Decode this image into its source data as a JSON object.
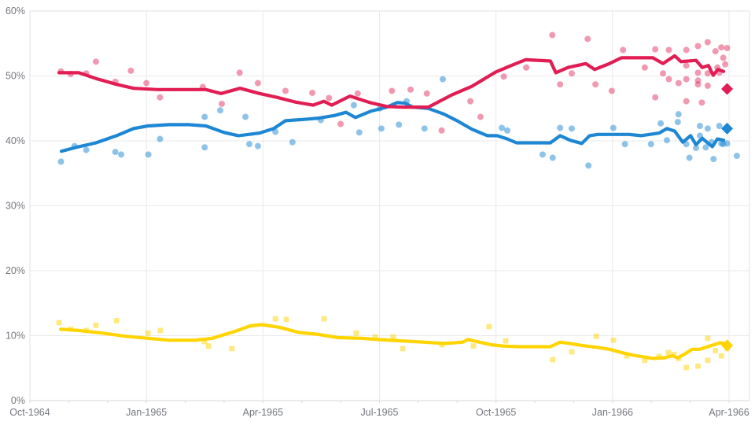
{
  "chart_data": {
    "type": "scatter",
    "title": "",
    "xlabel": "",
    "ylabel": "",
    "grid": true,
    "legend": "none",
    "x_axis": {
      "unit": "months-since-Oct-1964",
      "range": [
        0,
        18.55
      ],
      "ticks": [
        {
          "label": "Oct-1964",
          "month": 0
        },
        {
          "label": "Jan-1965",
          "month": 3
        },
        {
          "label": "Apr-1965",
          "month": 6
        },
        {
          "label": "Jul-1965",
          "month": 9
        },
        {
          "label": "Oct-1965",
          "month": 12
        },
        {
          "label": "Jan-1966",
          "month": 15
        },
        {
          "label": "Apr-1966",
          "month": 18
        }
      ]
    },
    "y_axis": {
      "range": [
        0,
        60
      ],
      "ticks": [
        {
          "label": "0%",
          "value": 0
        },
        {
          "label": "10%",
          "value": 10
        },
        {
          "label": "20%",
          "value": 20
        },
        {
          "label": "30%",
          "value": 30
        },
        {
          "label": "40%",
          "value": 40
        },
        {
          "label": "50%",
          "value": 50
        },
        {
          "label": "60%",
          "value": 60
        }
      ]
    },
    "series": [
      {
        "name": "yellow-series",
        "color": "#ffd400",
        "scatter_opacity": 0.5,
        "marker": "square",
        "scatter": [
          [
            0.75,
            12.0
          ],
          [
            1.05,
            11.0
          ],
          [
            1.45,
            10.8
          ],
          [
            1.7,
            11.6
          ],
          [
            2.23,
            12.3
          ],
          [
            3.04,
            10.4
          ],
          [
            3.36,
            10.8
          ],
          [
            4.49,
            9.1
          ],
          [
            4.6,
            8.4
          ],
          [
            5.2,
            8.0
          ],
          [
            6.32,
            12.6
          ],
          [
            6.6,
            12.5
          ],
          [
            7.57,
            12.6
          ],
          [
            8.4,
            10.4
          ],
          [
            8.89,
            9.8
          ],
          [
            9.35,
            9.8
          ],
          [
            9.6,
            8.0
          ],
          [
            10.61,
            8.6
          ],
          [
            11.42,
            8.4
          ],
          [
            11.82,
            11.4
          ],
          [
            12.25,
            9.2
          ],
          [
            13.46,
            6.3
          ],
          [
            13.95,
            7.5
          ],
          [
            14.58,
            9.9
          ],
          [
            15.02,
            9.3
          ],
          [
            15.37,
            6.9
          ],
          [
            15.83,
            6.2
          ],
          [
            16.2,
            6.8
          ],
          [
            16.44,
            7.4
          ],
          [
            16.58,
            7.1
          ],
          [
            16.7,
            6.5
          ],
          [
            16.9,
            5.1
          ],
          [
            17.2,
            5.3
          ],
          [
            17.45,
            9.6
          ],
          [
            17.45,
            6.2
          ],
          [
            17.65,
            7.7
          ],
          [
            17.8,
            6.9
          ],
          [
            17.95,
            8.0
          ]
        ],
        "trend": [
          [
            0.79,
            11.0
          ],
          [
            1.26,
            10.8
          ],
          [
            1.86,
            10.4
          ],
          [
            2.47,
            9.9
          ],
          [
            3.04,
            9.6
          ],
          [
            3.58,
            9.3
          ],
          [
            4.25,
            9.3
          ],
          [
            4.7,
            9.6
          ],
          [
            5.3,
            10.7
          ],
          [
            5.67,
            11.5
          ],
          [
            5.97,
            11.7
          ],
          [
            6.42,
            11.3
          ],
          [
            6.92,
            10.5
          ],
          [
            7.43,
            10.2
          ],
          [
            7.94,
            9.7
          ],
          [
            8.54,
            9.6
          ],
          [
            8.95,
            9.4
          ],
          [
            9.56,
            9.2
          ],
          [
            10.16,
            9.0
          ],
          [
            10.67,
            8.8
          ],
          [
            11.14,
            9.0
          ],
          [
            11.28,
            9.4
          ],
          [
            11.58,
            9.0
          ],
          [
            11.88,
            8.6
          ],
          [
            12.19,
            8.4
          ],
          [
            12.59,
            8.3
          ],
          [
            13.4,
            8.3
          ],
          [
            13.65,
            9.0
          ],
          [
            13.91,
            8.8
          ],
          [
            14.21,
            8.5
          ],
          [
            14.62,
            8.2
          ],
          [
            14.92,
            7.9
          ],
          [
            15.23,
            7.4
          ],
          [
            15.53,
            7.0
          ],
          [
            15.73,
            6.8
          ],
          [
            16.04,
            6.5
          ],
          [
            16.34,
            6.6
          ],
          [
            16.54,
            6.9
          ],
          [
            16.68,
            6.6
          ],
          [
            16.84,
            7.1
          ],
          [
            17.05,
            7.9
          ],
          [
            17.25,
            7.9
          ],
          [
            17.45,
            8.3
          ],
          [
            17.61,
            8.6
          ],
          [
            17.76,
            8.9
          ],
          [
            17.86,
            8.8
          ]
        ],
        "final_marker": {
          "shape": "diamond",
          "month": 17.95,
          "value": 8.5
        }
      },
      {
        "name": "blue-series",
        "color": "#1d87d4",
        "scatter_opacity": 0.5,
        "marker": "circle",
        "scatter": [
          [
            0.8,
            36.8
          ],
          [
            1.15,
            39.2
          ],
          [
            1.45,
            38.6
          ],
          [
            2.2,
            38.3
          ],
          [
            2.35,
            37.9
          ],
          [
            3.05,
            37.9
          ],
          [
            3.35,
            40.3
          ],
          [
            4.5,
            43.7
          ],
          [
            4.5,
            39.0
          ],
          [
            4.9,
            44.7
          ],
          [
            5.55,
            43.7
          ],
          [
            5.65,
            39.5
          ],
          [
            5.87,
            39.2
          ],
          [
            6.32,
            41.4
          ],
          [
            6.76,
            39.8
          ],
          [
            7.49,
            43.2
          ],
          [
            8.34,
            45.5
          ],
          [
            8.48,
            41.3
          ],
          [
            9.01,
            45.0
          ],
          [
            9.05,
            41.9
          ],
          [
            9.5,
            42.5
          ],
          [
            9.7,
            46.1
          ],
          [
            10.16,
            41.9
          ],
          [
            10.63,
            49.5
          ],
          [
            12.15,
            42.0
          ],
          [
            12.29,
            41.6
          ],
          [
            13.2,
            37.9
          ],
          [
            13.46,
            37.4
          ],
          [
            13.65,
            42.0
          ],
          [
            13.95,
            41.9
          ],
          [
            14.38,
            36.2
          ],
          [
            15.02,
            42.0
          ],
          [
            15.32,
            39.5
          ],
          [
            15.99,
            39.5
          ],
          [
            16.24,
            42.7
          ],
          [
            16.4,
            40.1
          ],
          [
            16.68,
            42.9
          ],
          [
            16.7,
            44.1
          ],
          [
            16.9,
            39.5
          ],
          [
            16.98,
            37.4
          ],
          [
            17.15,
            38.9
          ],
          [
            17.25,
            42.3
          ],
          [
            17.25,
            40.8
          ],
          [
            17.4,
            39.0
          ],
          [
            17.45,
            41.9
          ],
          [
            17.55,
            39.8
          ],
          [
            17.6,
            37.2
          ],
          [
            17.75,
            42.3
          ],
          [
            17.8,
            39.6
          ],
          [
            17.85,
            39.5
          ],
          [
            17.95,
            39.6
          ],
          [
            18.2,
            37.7
          ]
        ],
        "trend": [
          [
            0.81,
            38.4
          ],
          [
            1.26,
            39.1
          ],
          [
            1.7,
            39.7
          ],
          [
            2.23,
            40.8
          ],
          [
            2.67,
            41.9
          ],
          [
            3.04,
            42.3
          ],
          [
            3.58,
            42.5
          ],
          [
            4.09,
            42.5
          ],
          [
            4.53,
            42.3
          ],
          [
            5.0,
            41.3
          ],
          [
            5.37,
            40.8
          ],
          [
            5.91,
            41.2
          ],
          [
            6.28,
            41.9
          ],
          [
            6.58,
            43.1
          ],
          [
            7.03,
            43.3
          ],
          [
            7.43,
            43.5
          ],
          [
            7.84,
            43.9
          ],
          [
            8.14,
            44.4
          ],
          [
            8.38,
            43.6
          ],
          [
            8.79,
            44.6
          ],
          [
            9.19,
            45.2
          ],
          [
            9.46,
            45.9
          ],
          [
            9.66,
            45.8
          ],
          [
            9.86,
            45.2
          ],
          [
            10.26,
            45.0
          ],
          [
            10.67,
            44.1
          ],
          [
            11.03,
            43.0
          ],
          [
            11.38,
            41.8
          ],
          [
            11.78,
            40.8
          ],
          [
            12.03,
            40.8
          ],
          [
            12.29,
            40.3
          ],
          [
            12.53,
            39.7
          ],
          [
            13.4,
            39.7
          ],
          [
            13.65,
            40.8
          ],
          [
            13.91,
            40.1
          ],
          [
            14.21,
            39.6
          ],
          [
            14.41,
            40.8
          ],
          [
            14.62,
            41.0
          ],
          [
            15.43,
            41.0
          ],
          [
            15.73,
            40.8
          ],
          [
            16.2,
            41.2
          ],
          [
            16.4,
            41.9
          ],
          [
            16.6,
            41.5
          ],
          [
            16.81,
            39.8
          ],
          [
            17.01,
            40.8
          ],
          [
            17.15,
            39.4
          ],
          [
            17.31,
            40.4
          ],
          [
            17.45,
            39.7
          ],
          [
            17.57,
            39.1
          ],
          [
            17.7,
            40.3
          ],
          [
            17.86,
            40.1
          ]
        ],
        "final_marker": {
          "shape": "diamond",
          "month": 17.95,
          "value": 41.9
        }
      },
      {
        "name": "red-series",
        "color": "#e11d53",
        "scatter_opacity": 0.45,
        "marker": "circle",
        "scatter": [
          [
            0.8,
            50.7
          ],
          [
            1.05,
            50.3
          ],
          [
            1.45,
            50.4
          ],
          [
            1.7,
            52.2
          ],
          [
            2.2,
            49.1
          ],
          [
            2.6,
            50.8
          ],
          [
            3.0,
            48.9
          ],
          [
            3.35,
            46.7
          ],
          [
            4.45,
            48.3
          ],
          [
            4.94,
            45.7
          ],
          [
            5.4,
            50.5
          ],
          [
            5.87,
            48.9
          ],
          [
            6.58,
            47.7
          ],
          [
            7.27,
            47.4
          ],
          [
            7.7,
            46.6
          ],
          [
            8.0,
            42.6
          ],
          [
            8.44,
            47.3
          ],
          [
            9.32,
            47.7
          ],
          [
            9.8,
            47.9
          ],
          [
            10.22,
            47.3
          ],
          [
            10.6,
            41.6
          ],
          [
            11.34,
            46.1
          ],
          [
            11.6,
            43.7
          ],
          [
            12.2,
            49.9
          ],
          [
            12.78,
            51.3
          ],
          [
            13.45,
            56.3
          ],
          [
            13.65,
            48.7
          ],
          [
            13.95,
            50.4
          ],
          [
            14.36,
            55.7
          ],
          [
            14.56,
            48.7
          ],
          [
            14.98,
            47.7
          ],
          [
            15.27,
            54.0
          ],
          [
            15.83,
            51.3
          ],
          [
            16.1,
            54.1
          ],
          [
            16.1,
            46.7
          ],
          [
            16.3,
            50.4
          ],
          [
            16.45,
            54.0
          ],
          [
            16.45,
            49.5
          ],
          [
            16.7,
            48.9
          ],
          [
            16.9,
            54.0
          ],
          [
            16.9,
            51.6
          ],
          [
            16.9,
            49.5
          ],
          [
            16.9,
            46.1
          ],
          [
            17.2,
            54.6
          ],
          [
            17.2,
            50.5
          ],
          [
            17.2,
            49.3
          ],
          [
            17.2,
            48.7
          ],
          [
            17.3,
            45.9
          ],
          [
            17.45,
            55.2
          ],
          [
            17.45,
            50.4
          ],
          [
            17.45,
            48.5
          ],
          [
            17.65,
            53.8
          ],
          [
            17.7,
            51.3
          ],
          [
            17.75,
            50.5
          ],
          [
            17.8,
            54.4
          ],
          [
            17.85,
            52.8
          ],
          [
            17.9,
            51.8
          ],
          [
            17.95,
            54.3
          ]
        ],
        "trend": [
          [
            0.75,
            50.5
          ],
          [
            1.26,
            50.5
          ],
          [
            1.7,
            49.6
          ],
          [
            2.23,
            48.7
          ],
          [
            2.67,
            48.1
          ],
          [
            3.28,
            47.9
          ],
          [
            4.53,
            47.9
          ],
          [
            4.92,
            47.3
          ],
          [
            5.41,
            48.1
          ],
          [
            5.91,
            47.3
          ],
          [
            6.36,
            46.7
          ],
          [
            6.82,
            46.0
          ],
          [
            7.29,
            45.5
          ],
          [
            7.57,
            46.1
          ],
          [
            7.77,
            45.5
          ],
          [
            8.24,
            46.9
          ],
          [
            8.75,
            45.9
          ],
          [
            9.19,
            45.3
          ],
          [
            9.6,
            45.2
          ],
          [
            10.26,
            45.2
          ],
          [
            10.87,
            47.1
          ],
          [
            11.38,
            48.4
          ],
          [
            11.99,
            50.6
          ],
          [
            12.39,
            51.6
          ],
          [
            12.76,
            52.5
          ],
          [
            13.4,
            52.3
          ],
          [
            13.54,
            50.5
          ],
          [
            13.85,
            51.3
          ],
          [
            14.31,
            51.9
          ],
          [
            14.54,
            51.0
          ],
          [
            14.92,
            51.9
          ],
          [
            15.23,
            52.8
          ],
          [
            16.04,
            52.8
          ],
          [
            16.3,
            51.9
          ],
          [
            16.6,
            53.1
          ],
          [
            16.76,
            52.2
          ],
          [
            17.15,
            52.4
          ],
          [
            17.31,
            51.3
          ],
          [
            17.47,
            51.6
          ],
          [
            17.59,
            50.1
          ],
          [
            17.71,
            51.0
          ],
          [
            17.86,
            50.7
          ]
        ],
        "final_marker": {
          "shape": "diamond",
          "month": 17.95,
          "value": 48.0
        }
      }
    ],
    "style": {
      "background": "#ffffff",
      "gridline_color": "#e9e9e9",
      "border_color": "#e0e0e0",
      "axis_color": "#d8d8d8",
      "tick_label_color": "#74777e"
    }
  }
}
